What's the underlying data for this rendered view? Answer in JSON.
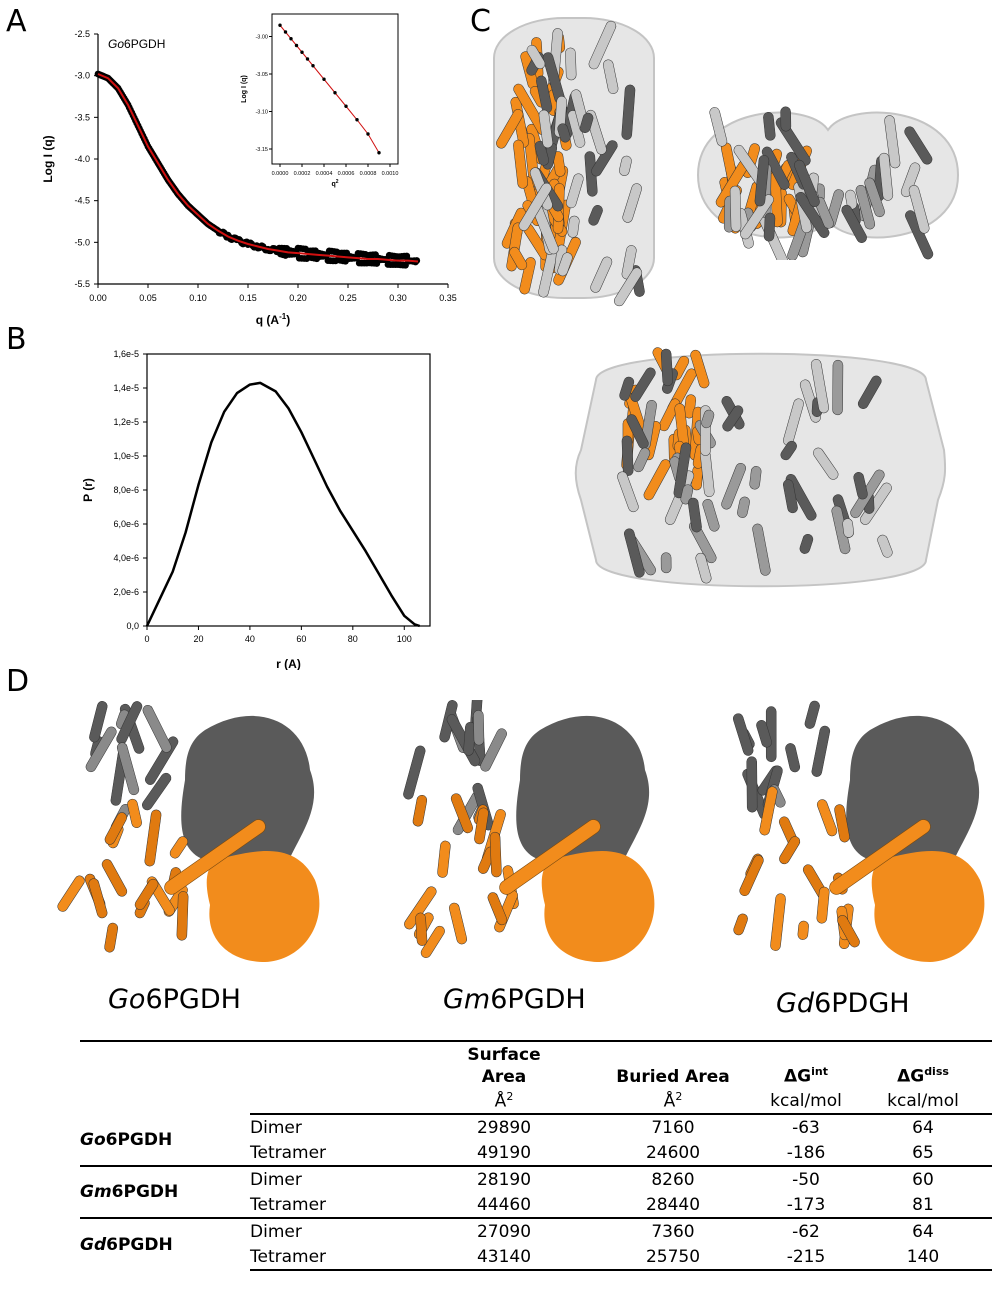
{
  "panels": {
    "A": {
      "letter": "A"
    },
    "B": {
      "letter": "B"
    },
    "C": {
      "letter": "C"
    },
    "D": {
      "letter": "D"
    }
  },
  "chart_data": [
    {
      "id": "A_main",
      "type": "scatter",
      "title": "Go6PGDH",
      "xlabel": "q (A-1)",
      "ylabel": "Log I (q)",
      "xlim": [
        0.0,
        0.35
      ],
      "ylim": [
        -5.5,
        -2.5
      ],
      "xticks": [
        "0.00",
        "0.05",
        "0.10",
        "0.15",
        "0.20",
        "0.25",
        "0.30",
        "0.35"
      ],
      "yticks": [
        "-2.5",
        "-3.0",
        "-3.5",
        "-4.0",
        "-4.5",
        "-5.0",
        "-5.5"
      ],
      "series": [
        {
          "points_color": "#000000",
          "fit_color": "#d01010",
          "x": [
            0.0,
            0.01,
            0.02,
            0.03,
            0.04,
            0.05,
            0.06,
            0.07,
            0.08,
            0.09,
            0.1,
            0.11,
            0.12,
            0.13,
            0.14,
            0.15,
            0.16,
            0.17,
            0.18,
            0.19,
            0.2,
            0.21,
            0.22,
            0.23,
            0.24,
            0.25,
            0.26,
            0.27,
            0.28,
            0.29,
            0.3,
            0.31,
            0.32
          ],
          "y": [
            -2.98,
            -3.03,
            -3.15,
            -3.35,
            -3.6,
            -3.85,
            -4.05,
            -4.25,
            -4.42,
            -4.56,
            -4.67,
            -4.78,
            -4.86,
            -4.93,
            -4.98,
            -5.02,
            -5.05,
            -5.08,
            -5.1,
            -5.12,
            -5.13,
            -5.14,
            -5.15,
            -5.16,
            -5.17,
            -5.18,
            -5.19,
            -5.2,
            -5.2,
            -5.21,
            -5.22,
            -5.22,
            -5.23
          ]
        }
      ]
    },
    {
      "id": "A_inset",
      "type": "scatter",
      "xlabel": "q2",
      "ylabel": "Log I (q)",
      "xlim": [
        -0.0001,
        0.001
      ],
      "ylim": [
        -3.17,
        -2.97
      ],
      "xticks": [
        "0.0000",
        "0.0002",
        "0.0004",
        "0.0006",
        "0.0008",
        "0.0010"
      ],
      "yticks": [
        "-3.00",
        "-3.05",
        "-3.10",
        "-3.15"
      ],
      "series": [
        {
          "points_color": "#000000",
          "fit_color": "#d01010",
          "x": [
            0.0,
            5e-05,
            0.0001,
            0.00015,
            0.0002,
            0.00025,
            0.0003,
            0.0004,
            0.0005,
            0.0006,
            0.0007,
            0.0008,
            0.0009
          ],
          "y": [
            -2.985,
            -2.994,
            -3.003,
            -3.012,
            -3.021,
            -3.03,
            -3.039,
            -3.057,
            -3.075,
            -3.093,
            -3.111,
            -3.13,
            -3.155
          ]
        }
      ]
    },
    {
      "id": "B",
      "type": "line",
      "xlabel": "r (A)",
      "ylabel": "P (r)",
      "xlim": [
        0,
        110
      ],
      "ylim": [
        0,
        1.6e-05
      ],
      "xticks": [
        "0",
        "20",
        "40",
        "60",
        "80",
        "100"
      ],
      "yticks": [
        "0,0",
        "2,0e-6",
        "4,0e-6",
        "6,0e-6",
        "8,0e-6",
        "1,0e-5",
        "1,2e-5",
        "1,4e-5",
        "1,6e-5"
      ],
      "series": [
        {
          "x": [
            0,
            5,
            10,
            15,
            20,
            25,
            30,
            35,
            40,
            44,
            50,
            55,
            60,
            65,
            70,
            75,
            80,
            85,
            90,
            95,
            100,
            104,
            106
          ],
          "y": [
            0,
            1.6e-06,
            3.2e-06,
            5.5e-06,
            8.3e-06,
            1.08e-05,
            1.26e-05,
            1.37e-05,
            1.42e-05,
            1.43e-05,
            1.38e-05,
            1.28e-05,
            1.14e-05,
            9.8e-06,
            8.2e-06,
            6.8e-06,
            5.6e-06,
            4.4e-06,
            3.1e-06,
            1.8e-06,
            6e-07,
            1e-07,
            0
          ]
        }
      ]
    }
  ],
  "structures": {
    "labels": [
      {
        "italic": "Go",
        "rest": "6PGDH"
      },
      {
        "italic": "Gm",
        "rest": "6PGDH"
      },
      {
        "italic": "Gd",
        "rest": "6PDGH"
      }
    ],
    "colors": {
      "orange": "#f28c1c",
      "dark_gray": "#5a5a5a",
      "light_gray": "#c8c8c8",
      "envelope": "#e4e4e4"
    }
  },
  "table": {
    "headers": {
      "surface": "Surface\nArea",
      "buried": "Buried Area",
      "dgint": "ΔGint",
      "dgdiss": "ΔGdiss"
    },
    "units": {
      "surface": "Å2",
      "buried": "Å2",
      "dgint": "kcal/mol",
      "dgdiss": "kcal/mol"
    },
    "groups": [
      {
        "italic": "Go",
        "rest": "6PGDH",
        "rows": [
          {
            "level": "Dimer",
            "surface": "29890",
            "buried": "7160",
            "dgint": "-63",
            "dgdiss": "64"
          },
          {
            "level": "Tetramer",
            "surface": "49190",
            "buried": "24600",
            "dgint": "-186",
            "dgdiss": "65"
          }
        ]
      },
      {
        "italic": "Gm",
        "rest": "6PGDH",
        "rows": [
          {
            "level": "Dimer",
            "surface": "28190",
            "buried": "8260",
            "dgint": "-50",
            "dgdiss": "60"
          },
          {
            "level": "Tetramer",
            "surface": "44460",
            "buried": "28440",
            "dgint": "-173",
            "dgdiss": "81"
          }
        ]
      },
      {
        "italic": "Gd",
        "rest": "6PGDH",
        "rows": [
          {
            "level": "Dimer",
            "surface": "27090",
            "buried": "7360",
            "dgint": "-62",
            "dgdiss": "64"
          },
          {
            "level": "Tetramer",
            "surface": "43140",
            "buried": "25750",
            "dgint": "-215",
            "dgdiss": "140"
          }
        ]
      }
    ]
  }
}
